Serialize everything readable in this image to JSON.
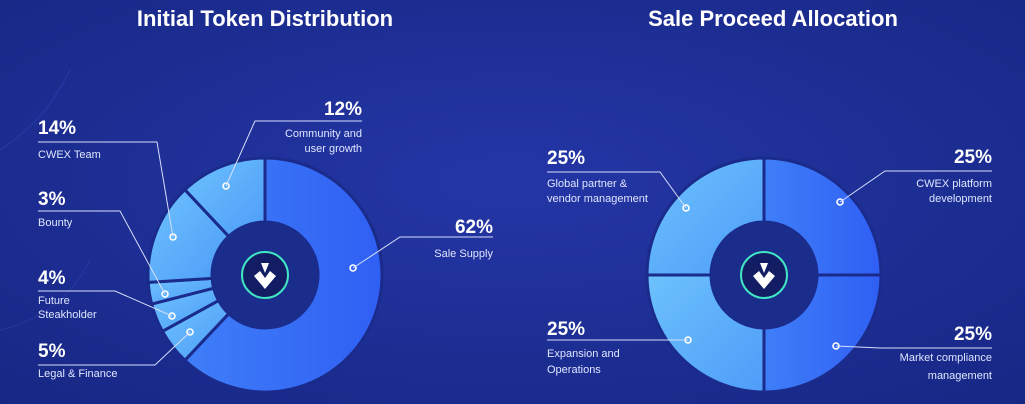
{
  "colors": {
    "background": "#1a2b8c",
    "slice_light": "#62b4fb",
    "slice_dark": "#3a6ef7",
    "hub": "#1b2d8a",
    "logo_ring": "#41e6c3"
  },
  "logo_icon": "cwex-diamond-logo",
  "chart_data": [
    {
      "type": "pie",
      "title": "Initial Token Distribution",
      "slices": [
        {
          "label_lines": [
            "Sale Supply"
          ],
          "value": 62,
          "pct_text": "62%"
        },
        {
          "label_lines": [
            "Legal & Finance"
          ],
          "value": 5,
          "pct_text": "5%"
        },
        {
          "label_lines": [
            "Future",
            "Steakholder"
          ],
          "value": 4,
          "pct_text": "4%"
        },
        {
          "label_lines": [
            "Bounty"
          ],
          "value": 3,
          "pct_text": "3%"
        },
        {
          "label_lines": [
            "CWEX Team"
          ],
          "value": 14,
          "pct_text": "14%"
        },
        {
          "label_lines": [
            "Community and",
            "user growth"
          ],
          "value": 12,
          "pct_text": "12%"
        }
      ]
    },
    {
      "type": "pie",
      "title": "Sale Proceed Allocation",
      "slices": [
        {
          "label_lines": [
            "CWEX platform",
            "development"
          ],
          "value": 25,
          "pct_text": "25%"
        },
        {
          "label_lines": [
            "Market compliance",
            "management"
          ],
          "value": 25,
          "pct_text": "25%"
        },
        {
          "label_lines": [
            "Expansion and",
            "Operations"
          ],
          "value": 25,
          "pct_text": "25%"
        },
        {
          "label_lines": [
            "Global partner &",
            "vendor management"
          ],
          "value": 25,
          "pct_text": "25%"
        }
      ]
    }
  ]
}
